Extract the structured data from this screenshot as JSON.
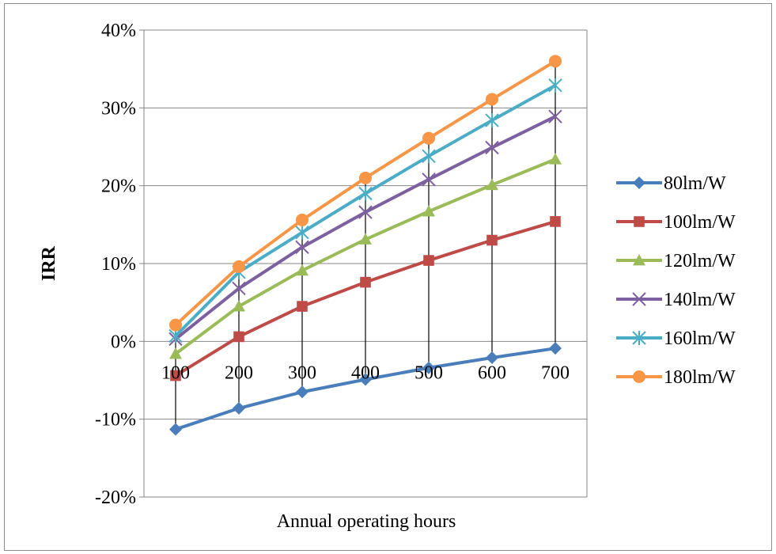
{
  "chart_data": {
    "type": "line",
    "title": "",
    "xlabel": "Annual operating hours",
    "ylabel": "IRR",
    "x": [
      100,
      200,
      300,
      400,
      500,
      600,
      700
    ],
    "x_tick_labels": [
      "100",
      "200",
      "300",
      "400",
      "500",
      "600",
      "700"
    ],
    "y_tick_labels": [
      "40%",
      "30%",
      "20%",
      "10%",
      "0%",
      "-10%",
      "-20%"
    ],
    "ylim": [
      -0.2,
      0.4
    ],
    "y_ticks": [
      0.4,
      0.3,
      0.2,
      0.1,
      0.0,
      -0.1,
      -0.2
    ],
    "grid": "horizontal",
    "drop_lines": true,
    "legend_position": "right",
    "series": [
      {
        "name": "80lm/W",
        "color": "#4A7EBB",
        "marker": "diamond",
        "values": [
          -0.113,
          -0.086,
          -0.065,
          -0.049,
          -0.034,
          -0.021,
          -0.009
        ]
      },
      {
        "name": "100lm/W",
        "color": "#BE4B48",
        "marker": "square",
        "values": [
          -0.044,
          0.006,
          0.045,
          0.076,
          0.104,
          0.13,
          0.154
        ]
      },
      {
        "name": "120lm/W",
        "color": "#9BBB59",
        "marker": "triangle",
        "values": [
          -0.016,
          0.045,
          0.091,
          0.131,
          0.167,
          0.201,
          0.234
        ]
      },
      {
        "name": "140lm/W",
        "color": "#7D60A0",
        "marker": "x",
        "values": [
          0.003,
          0.068,
          0.121,
          0.166,
          0.208,
          0.249,
          0.289
        ]
      },
      {
        "name": "160lm/W",
        "color": "#4BACC6",
        "marker": "star",
        "values": [
          0.007,
          0.089,
          0.14,
          0.19,
          0.238,
          0.284,
          0.329
        ]
      },
      {
        "name": "180lm/W",
        "color": "#F79646",
        "marker": "circle",
        "values": [
          0.021,
          0.096,
          0.156,
          0.21,
          0.261,
          0.311,
          0.36
        ]
      }
    ]
  }
}
